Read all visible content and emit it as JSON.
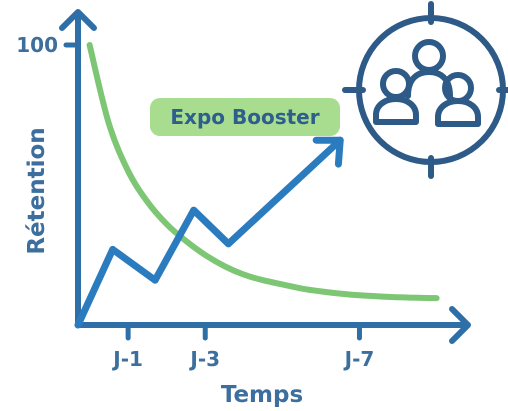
{
  "chart_data": {
    "type": "line",
    "ylabel": "Rétention",
    "xlabel": "Temps",
    "y_tick_labels": [
      "100"
    ],
    "y_tick_values": [
      100
    ],
    "x_tick_labels": [
      "J-1",
      "J-3",
      "J-7"
    ],
    "x_tick_values": [
      1,
      3,
      7
    ],
    "xlim": [
      -0.3,
      9.4
    ],
    "ylim": [
      0,
      100
    ],
    "grid": false,
    "series": [
      {
        "color": "#7dc674",
        "kind": "curve",
        "x": [
          0.0,
          0.5,
          1.0,
          1.5,
          2.0,
          2.5,
          3.0,
          3.5,
          4.0,
          4.5,
          5.0,
          5.5,
          6.0,
          6.5,
          7.0,
          7.5,
          8.0,
          8.5,
          9.0
        ],
        "y": [
          100,
          72,
          55,
          44,
          36,
          30,
          25,
          21,
          18,
          16,
          14.5,
          13,
          12,
          11.2,
          10.6,
          10.2,
          9.9,
          9.7,
          9.6
        ]
      },
      {
        "name": "Expo Booster",
        "color": "#2b7bbf",
        "kind": "arrow",
        "x": [
          -0.3,
          0.6,
          1.7,
          2.7,
          3.6,
          6.5
        ],
        "y": [
          0,
          27,
          16,
          41,
          29,
          66
        ]
      }
    ]
  },
  "badge": {
    "label": "Expo Booster"
  },
  "colors": {
    "axis": "#2f6fa8",
    "axis_text": "#3d6f9e",
    "retention_curve": "#7dc674",
    "booster_line": "#2b7bbf",
    "badge_background": "#a8dc8e",
    "badge_text": "#2d5e8e",
    "icon": "#2d5a86"
  },
  "icon": {
    "name": "target-group-icon"
  }
}
